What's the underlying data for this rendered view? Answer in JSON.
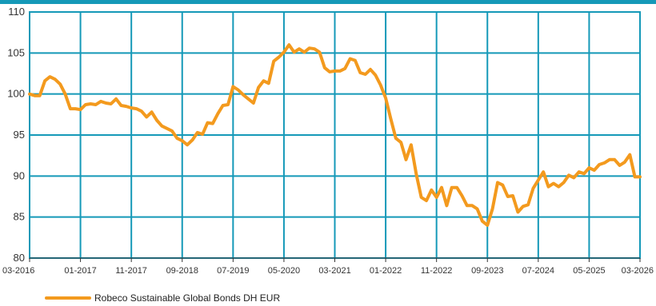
{
  "chart_data": {
    "type": "line",
    "title": "",
    "xlabel": "",
    "ylabel": "",
    "ylim": [
      80,
      110
    ],
    "y_ticks": [
      80,
      85,
      90,
      95,
      100,
      105,
      110
    ],
    "x_tick_labels": [
      "03-2016",
      "01-2017",
      "11-2017",
      "09-2018",
      "07-2019",
      "05-2020",
      "03-2021",
      "01-2022",
      "11-2022",
      "09-2023",
      "07-2024",
      "05-2025",
      "03-2026"
    ],
    "grid": true,
    "legend_position": "bottom-left",
    "series": [
      {
        "name": "Robeco Sustainable Global Bonds DH EUR",
        "color": "#F39A1E",
        "x": [
          0,
          1,
          2,
          3,
          4,
          5,
          6,
          7,
          8,
          9,
          10,
          11,
          12,
          13,
          14,
          15,
          16,
          17,
          18,
          19,
          20,
          21,
          22,
          23,
          24,
          25,
          26,
          27,
          28,
          29,
          30,
          31,
          32,
          33,
          34,
          35,
          36,
          37,
          38,
          39,
          40,
          41,
          42,
          43,
          44,
          45,
          46,
          47,
          48,
          49,
          50,
          51,
          52,
          53,
          54,
          55,
          56,
          57,
          58,
          59,
          60,
          61,
          62,
          63,
          64,
          65,
          66,
          67,
          68,
          69,
          70,
          71,
          72,
          73,
          74,
          75,
          76,
          77,
          78,
          79,
          80,
          81,
          82,
          83,
          84,
          85,
          86,
          87,
          88,
          89,
          90,
          91,
          92,
          93,
          94,
          95,
          96,
          97,
          98,
          99,
          100,
          101,
          102,
          103,
          104,
          105,
          106,
          107,
          108,
          109,
          110,
          111,
          112,
          113,
          114,
          115,
          116,
          117,
          118,
          119,
          120
        ],
        "values": [
          100.0,
          99.8,
          99.8,
          101.6,
          102.1,
          101.8,
          101.2,
          100.0,
          98.2,
          98.2,
          98.1,
          98.7,
          98.8,
          98.7,
          99.1,
          98.9,
          98.8,
          99.4,
          98.6,
          98.5,
          98.3,
          98.2,
          97.9,
          97.2,
          97.8,
          96.8,
          96.1,
          95.8,
          95.5,
          94.6,
          94.3,
          93.8,
          94.4,
          95.3,
          95.1,
          96.5,
          96.4,
          97.6,
          98.6,
          98.7,
          100.9,
          100.5,
          99.9,
          99.4,
          98.9,
          100.8,
          101.6,
          101.3,
          104.0,
          104.5,
          105.1,
          106.0,
          105.1,
          105.5,
          105.1,
          105.6,
          105.5,
          105.1,
          103.2,
          102.7,
          102.8,
          102.8,
          103.1,
          104.3,
          104.1,
          102.6,
          102.4,
          103.0,
          102.3,
          101.1,
          99.5,
          97.0,
          94.6,
          94.1,
          92.0,
          93.8,
          90.3,
          87.4,
          87.0,
          88.3,
          87.4,
          88.6,
          86.4,
          88.6,
          88.6,
          87.6,
          86.4,
          86.4,
          86.0,
          84.5,
          84.0,
          86.0,
          89.2,
          88.9,
          87.5,
          87.6,
          85.6,
          86.3,
          86.5,
          88.5,
          89.5,
          90.5,
          88.7,
          89.1,
          88.7,
          89.2,
          90.1,
          89.8,
          90.5,
          90.3,
          91.0,
          90.7,
          91.4,
          91.6,
          92.0,
          92.0,
          91.3,
          91.7,
          92.6,
          89.9,
          89.9
        ]
      }
    ]
  }
}
